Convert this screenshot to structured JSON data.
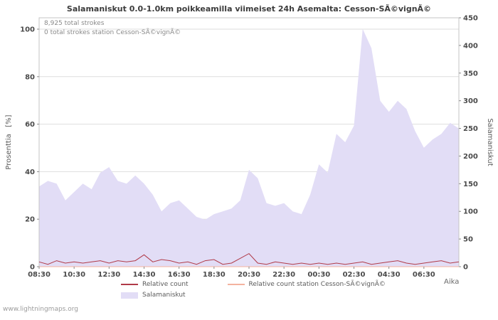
{
  "title": "Salamaniskut 0.0-1.0km poikkeamilla viimeiset 24h Asemalta: Cesson-SÃ©vignÃ©",
  "annotations": {
    "total_strokes": "8,925 total strokes",
    "station_strokes": "0 total strokes station Cesson-SÃ©vignÃ©"
  },
  "watermark": "www.lightningmaps.org",
  "chart_data": {
    "type": "area",
    "title": "Salamaniskut 0.0-1.0km poikkeamilla viimeiset 24h Asemalta: Cesson-SÃ©vignÃ©",
    "xlabel": "Aika",
    "ylabel_left": "Prosenttia   [%]",
    "ylabel_right": "Salamaniskut",
    "grid": "horizontal",
    "legend_position": "bottom",
    "sample_interval_hours": 0.5,
    "x_hours": 24,
    "axes": {
      "x": {
        "label": "Aika",
        "tick_interval_hours": 2,
        "tick_labels": [
          "08:30",
          "10:30",
          "12:30",
          "14:30",
          "16:30",
          "18:30",
          "20:30",
          "22:30",
          "00:30",
          "02:30",
          "04:30",
          "06:30"
        ]
      },
      "left": {
        "label": "Prosenttia [%]",
        "min": 0,
        "max": 100,
        "ticks": [
          0,
          20,
          40,
          60,
          80,
          100
        ]
      },
      "right": {
        "label": "Salamaniskut",
        "min": 0,
        "max": 450,
        "ticks": [
          0,
          50,
          100,
          150,
          200,
          250,
          300,
          350,
          400,
          450
        ]
      }
    },
    "series": [
      {
        "name": "Relative count",
        "type": "line",
        "axis": "left",
        "color": "#b03a48",
        "values": [
          2,
          1,
          2.5,
          1.5,
          2,
          1.5,
          2,
          2.5,
          1.5,
          2.5,
          2,
          2.5,
          5,
          2,
          3,
          2.5,
          1.5,
          2,
          1,
          2.5,
          3,
          1,
          1.5,
          3.5,
          5.5,
          1.5,
          1,
          2,
          1.5,
          1,
          1.5,
          1,
          1.5,
          1,
          1.5,
          1,
          1.5,
          2,
          1,
          1.5,
          2,
          2.5,
          1.5,
          1,
          1.5,
          2,
          2.5,
          1.5,
          2
        ]
      },
      {
        "name": "Relative count station Cesson-SÃ©vignÃ©",
        "type": "line",
        "axis": "left",
        "color": "#f4b39f",
        "values": [
          0,
          0,
          0,
          0,
          0,
          0,
          0,
          0,
          0,
          0,
          0,
          0,
          0,
          0,
          0,
          0,
          0,
          0,
          0,
          0,
          0,
          0,
          0,
          0,
          0,
          0,
          0,
          0,
          0,
          0,
          0,
          0,
          0,
          0,
          0,
          0,
          0,
          0,
          0,
          0,
          0,
          0,
          0,
          0,
          0,
          0,
          0,
          0,
          0
        ]
      },
      {
        "name": "Salamaniskut",
        "type": "area",
        "axis": "right",
        "color": "#e2ddf6",
        "values": [
          145,
          155,
          150,
          120,
          135,
          150,
          140,
          170,
          180,
          155,
          150,
          165,
          150,
          130,
          100,
          115,
          120,
          105,
          90,
          85,
          95,
          100,
          105,
          120,
          175,
          160,
          115,
          110,
          115,
          100,
          95,
          130,
          185,
          170,
          240,
          225,
          255,
          430,
          395,
          300,
          280,
          300,
          285,
          245,
          215,
          230,
          240,
          260,
          250
        ]
      }
    ]
  }
}
